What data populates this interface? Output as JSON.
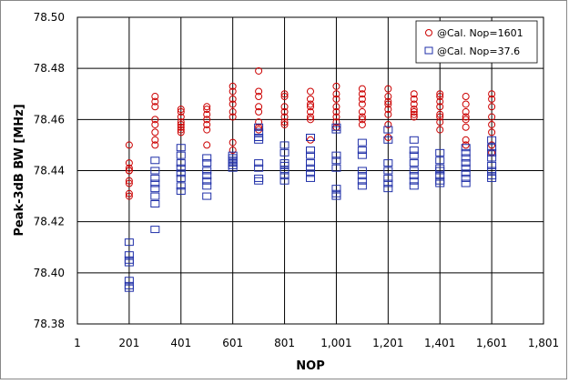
{
  "chart_data": {
    "type": "scatter",
    "title": "",
    "xlabel": "NOP",
    "ylabel": "Peak-3dB BW [MHz]",
    "xlim": [
      1,
      1801
    ],
    "ylim": [
      78.38,
      78.5
    ],
    "x_ticks": [
      1,
      201,
      401,
      601,
      801,
      1001,
      1201,
      1401,
      1601,
      1801
    ],
    "x_tick_labels": [
      "1",
      "201",
      "401",
      "601",
      "801",
      "1,001",
      "1,201",
      "1,401",
      "1,601",
      "1,801"
    ],
    "y_ticks": [
      78.38,
      78.4,
      78.42,
      78.44,
      78.46,
      78.48,
      78.5
    ],
    "y_tick_labels": [
      "78.38",
      "78.40",
      "78.42",
      "78.44",
      "78.46",
      "78.48",
      "78.50"
    ],
    "grid": true,
    "legend_position": "top-right",
    "series": [
      {
        "name": "@Cal. Nop=1601",
        "marker": "circle",
        "color": "#cc0000",
        "points": [
          [
            201,
            78.45
          ],
          [
            201,
            78.443
          ],
          [
            201,
            78.441
          ],
          [
            201,
            78.44
          ],
          [
            201,
            78.44
          ],
          [
            201,
            78.436
          ],
          [
            201,
            78.435
          ],
          [
            201,
            78.431
          ],
          [
            201,
            78.43
          ],
          [
            301,
            78.469
          ],
          [
            301,
            78.467
          ],
          [
            301,
            78.465
          ],
          [
            301,
            78.46
          ],
          [
            301,
            78.458
          ],
          [
            301,
            78.455
          ],
          [
            301,
            78.452
          ],
          [
            301,
            78.45
          ],
          [
            401,
            78.464
          ],
          [
            401,
            78.463
          ],
          [
            401,
            78.461
          ],
          [
            401,
            78.459
          ],
          [
            401,
            78.458
          ],
          [
            401,
            78.457
          ],
          [
            401,
            78.456
          ],
          [
            401,
            78.455
          ],
          [
            501,
            78.465
          ],
          [
            501,
            78.464
          ],
          [
            501,
            78.462
          ],
          [
            501,
            78.46
          ],
          [
            501,
            78.458
          ],
          [
            501,
            78.456
          ],
          [
            501,
            78.45
          ],
          [
            601,
            78.473
          ],
          [
            601,
            78.471
          ],
          [
            601,
            78.468
          ],
          [
            601,
            78.466
          ],
          [
            601,
            78.463
          ],
          [
            601,
            78.461
          ],
          [
            601,
            78.451
          ],
          [
            601,
            78.448
          ],
          [
            701,
            78.479
          ],
          [
            701,
            78.471
          ],
          [
            701,
            78.469
          ],
          [
            701,
            78.465
          ],
          [
            701,
            78.463
          ],
          [
            701,
            78.459
          ],
          [
            701,
            78.457
          ],
          [
            701,
            78.456
          ],
          [
            801,
            78.47
          ],
          [
            801,
            78.469
          ],
          [
            801,
            78.465
          ],
          [
            801,
            78.463
          ],
          [
            801,
            78.461
          ],
          [
            801,
            78.459
          ],
          [
            801,
            78.458
          ],
          [
            901,
            78.471
          ],
          [
            901,
            78.468
          ],
          [
            901,
            78.466
          ],
          [
            901,
            78.465
          ],
          [
            901,
            78.463
          ],
          [
            901,
            78.461
          ],
          [
            901,
            78.46
          ],
          [
            901,
            78.452
          ],
          [
            1001,
            78.473
          ],
          [
            1001,
            78.47
          ],
          [
            1001,
            78.468
          ],
          [
            1001,
            78.465
          ],
          [
            1001,
            78.463
          ],
          [
            1001,
            78.461
          ],
          [
            1001,
            78.459
          ],
          [
            1001,
            78.457
          ],
          [
            1101,
            78.472
          ],
          [
            1101,
            78.47
          ],
          [
            1101,
            78.468
          ],
          [
            1101,
            78.466
          ],
          [
            1101,
            78.463
          ],
          [
            1101,
            78.461
          ],
          [
            1101,
            78.46
          ],
          [
            1101,
            78.458
          ],
          [
            1201,
            78.472
          ],
          [
            1201,
            78.469
          ],
          [
            1201,
            78.467
          ],
          [
            1201,
            78.466
          ],
          [
            1201,
            78.464
          ],
          [
            1201,
            78.462
          ],
          [
            1201,
            78.458
          ],
          [
            1201,
            78.453
          ],
          [
            1301,
            78.47
          ],
          [
            1301,
            78.468
          ],
          [
            1301,
            78.466
          ],
          [
            1301,
            78.464
          ],
          [
            1301,
            78.463
          ],
          [
            1301,
            78.462
          ],
          [
            1301,
            78.461
          ],
          [
            1401,
            78.47
          ],
          [
            1401,
            78.469
          ],
          [
            1401,
            78.467
          ],
          [
            1401,
            78.465
          ],
          [
            1401,
            78.462
          ],
          [
            1401,
            78.461
          ],
          [
            1401,
            78.459
          ],
          [
            1401,
            78.456
          ],
          [
            1501,
            78.469
          ],
          [
            1501,
            78.466
          ],
          [
            1501,
            78.463
          ],
          [
            1501,
            78.461
          ],
          [
            1501,
            78.46
          ],
          [
            1501,
            78.457
          ],
          [
            1501,
            78.452
          ],
          [
            1501,
            78.45
          ],
          [
            1601,
            78.47
          ],
          [
            1601,
            78.468
          ],
          [
            1601,
            78.465
          ],
          [
            1601,
            78.461
          ],
          [
            1601,
            78.458
          ],
          [
            1601,
            78.455
          ],
          [
            1601,
            78.45
          ],
          [
            1601,
            78.447
          ]
        ]
      },
      {
        "name": "@Cal. Nop=37.6",
        "marker": "square",
        "color": "#1f2fa8",
        "points": [
          [
            201,
            78.412
          ],
          [
            201,
            78.407
          ],
          [
            201,
            78.405
          ],
          [
            201,
            78.404
          ],
          [
            201,
            78.397
          ],
          [
            201,
            78.395
          ],
          [
            201,
            78.394
          ],
          [
            301,
            78.444
          ],
          [
            301,
            78.44
          ],
          [
            301,
            78.437
          ],
          [
            301,
            78.435
          ],
          [
            301,
            78.433
          ],
          [
            301,
            78.43
          ],
          [
            301,
            78.427
          ],
          [
            301,
            78.417
          ],
          [
            401,
            78.449
          ],
          [
            401,
            78.446
          ],
          [
            401,
            78.443
          ],
          [
            401,
            78.441
          ],
          [
            401,
            78.439
          ],
          [
            401,
            78.437
          ],
          [
            401,
            78.434
          ],
          [
            401,
            78.432
          ],
          [
            501,
            78.445
          ],
          [
            501,
            78.443
          ],
          [
            501,
            78.44
          ],
          [
            501,
            78.438
          ],
          [
            501,
            78.436
          ],
          [
            501,
            78.434
          ],
          [
            501,
            78.43
          ],
          [
            601,
            78.446
          ],
          [
            601,
            78.445
          ],
          [
            601,
            78.444
          ],
          [
            601,
            78.443
          ],
          [
            601,
            78.442
          ],
          [
            601,
            78.441
          ],
          [
            701,
            78.457
          ],
          [
            701,
            78.455
          ],
          [
            701,
            78.453
          ],
          [
            701,
            78.452
          ],
          [
            701,
            78.443
          ],
          [
            701,
            78.441
          ],
          [
            701,
            78.437
          ],
          [
            701,
            78.436
          ],
          [
            801,
            78.45
          ],
          [
            801,
            78.447
          ],
          [
            801,
            78.443
          ],
          [
            801,
            78.442
          ],
          [
            801,
            78.44
          ],
          [
            801,
            78.438
          ],
          [
            801,
            78.436
          ],
          [
            901,
            78.453
          ],
          [
            901,
            78.448
          ],
          [
            901,
            78.446
          ],
          [
            901,
            78.443
          ],
          [
            901,
            78.441
          ],
          [
            901,
            78.439
          ],
          [
            901,
            78.437
          ],
          [
            1001,
            78.457
          ],
          [
            1001,
            78.456
          ],
          [
            1001,
            78.446
          ],
          [
            1001,
            78.444
          ],
          [
            1001,
            78.441
          ],
          [
            1001,
            78.433
          ],
          [
            1001,
            78.431
          ],
          [
            1001,
            78.43
          ],
          [
            1101,
            78.451
          ],
          [
            1101,
            78.448
          ],
          [
            1101,
            78.446
          ],
          [
            1101,
            78.44
          ],
          [
            1101,
            78.438
          ],
          [
            1101,
            78.436
          ],
          [
            1101,
            78.434
          ],
          [
            1201,
            78.456
          ],
          [
            1201,
            78.452
          ],
          [
            1201,
            78.443
          ],
          [
            1201,
            78.44
          ],
          [
            1201,
            78.437
          ],
          [
            1201,
            78.435
          ],
          [
            1201,
            78.433
          ],
          [
            1301,
            78.452
          ],
          [
            1301,
            78.448
          ],
          [
            1301,
            78.446
          ],
          [
            1301,
            78.443
          ],
          [
            1301,
            78.44
          ],
          [
            1301,
            78.438
          ],
          [
            1301,
            78.436
          ],
          [
            1301,
            78.434
          ],
          [
            1401,
            78.447
          ],
          [
            1401,
            78.444
          ],
          [
            1401,
            78.441
          ],
          [
            1401,
            78.44
          ],
          [
            1401,
            78.438
          ],
          [
            1401,
            78.436
          ],
          [
            1401,
            78.435
          ],
          [
            1501,
            78.449
          ],
          [
            1501,
            78.447
          ],
          [
            1501,
            78.445
          ],
          [
            1501,
            78.443
          ],
          [
            1501,
            78.441
          ],
          [
            1501,
            78.439
          ],
          [
            1501,
            78.437
          ],
          [
            1501,
            78.435
          ],
          [
            1601,
            78.452
          ],
          [
            1601,
            78.449
          ],
          [
            1601,
            78.447
          ],
          [
            1601,
            78.445
          ],
          [
            1601,
            78.442
          ],
          [
            1601,
            78.44
          ],
          [
            1601,
            78.438
          ],
          [
            1601,
            78.437
          ]
        ]
      }
    ]
  }
}
